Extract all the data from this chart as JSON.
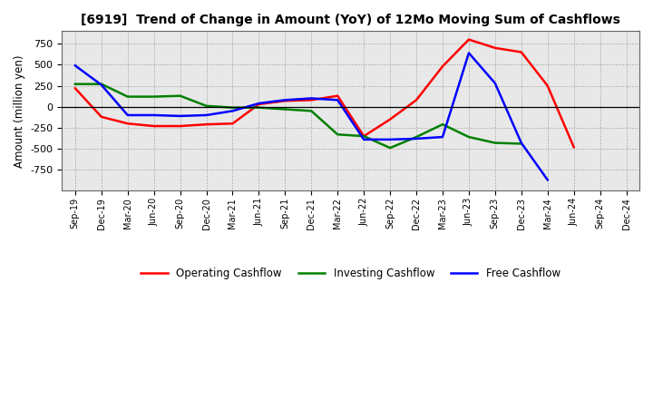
{
  "title": "[6919]  Trend of Change in Amount (YoY) of 12Mo Moving Sum of Cashflows",
  "ylabel": "Amount (million yen)",
  "background_color": "#ffffff",
  "plot_background": "#e8e8e8",
  "x_labels": [
    "Sep-19",
    "Dec-19",
    "Mar-20",
    "Jun-20",
    "Sep-20",
    "Dec-20",
    "Mar-21",
    "Jun-21",
    "Sep-21",
    "Dec-21",
    "Mar-22",
    "Jun-22",
    "Sep-22",
    "Dec-22",
    "Mar-23",
    "Jun-23",
    "Sep-23",
    "Dec-23",
    "Mar-24",
    "Jun-24",
    "Sep-24",
    "Dec-24"
  ],
  "operating_cashflow": [
    220,
    -120,
    -200,
    -230,
    -230,
    -210,
    -200,
    30,
    70,
    80,
    130,
    -350,
    -150,
    80,
    480,
    800,
    700,
    650,
    250,
    -480,
    null,
    null
  ],
  "investing_cashflow": [
    270,
    270,
    120,
    120,
    130,
    10,
    -10,
    -10,
    -30,
    -50,
    -330,
    -350,
    -490,
    -360,
    -210,
    -360,
    -430,
    -440,
    null,
    null,
    null,
    null
  ],
  "free_cashflow": [
    490,
    260,
    -100,
    -100,
    -110,
    -100,
    -50,
    40,
    80,
    100,
    80,
    -390,
    -390,
    -380,
    -360,
    640,
    280,
    -430,
    -870,
    null,
    null,
    null
  ],
  "ylim": [
    -1000,
    900
  ],
  "yticks": [
    -750,
    -500,
    -250,
    0,
    250,
    500,
    750
  ],
  "line_colors": {
    "operating": "#ff0000",
    "investing": "#008000",
    "free": "#0000ff"
  },
  "legend_labels": [
    "Operating Cashflow",
    "Investing Cashflow",
    "Free Cashflow"
  ]
}
